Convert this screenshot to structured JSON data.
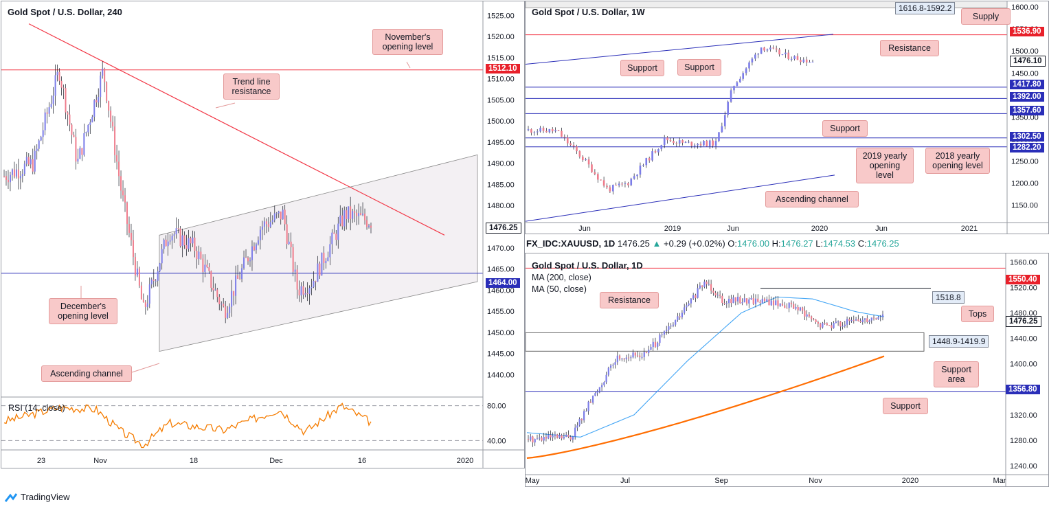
{
  "brand": {
    "name": "TradingView",
    "icon": "tradingview-cloud-icon"
  },
  "colors": {
    "bull": "#7b7ce8",
    "bear": "#ef7c8c",
    "red_line": "#f23645",
    "blue_line": "#2a2eb8",
    "ma200": "#ff6d00",
    "ma50": "#42a5f5",
    "rsi": "#f57c00",
    "red_tag": "#e8202a",
    "blue_tag": "#2a2eb8",
    "label_fill": "#f8c9c9"
  },
  "chart_data": [
    {
      "id": "h4",
      "type": "candlestick",
      "title": "Gold Spot / U.S. Dollar, 240",
      "price_axis": {
        "ylim": [
          1436,
          1527
        ],
        "ticks": [
          "1525.00",
          "1520.00",
          "1515.00",
          "1510.00",
          "1505.00",
          "1500.00",
          "1495.00",
          "1490.00",
          "1485.00",
          "1480.00",
          "1475.00",
          "1470.00",
          "1465.00",
          "1460.00",
          "1455.00",
          "1450.00",
          "1445.00",
          "1440.00"
        ]
      },
      "x_ticks": [
        "23",
        "Nov",
        "18",
        "Dec",
        "16",
        "2020"
      ],
      "price_tags": [
        {
          "text": "1512.10",
          "color": "red"
        },
        {
          "text": "1476.25",
          "color": "white"
        },
        {
          "text": "1464.00",
          "color": "blue"
        }
      ],
      "annotations": [
        {
          "text": "November's opening level"
        },
        {
          "text": "Trend line resistance"
        },
        {
          "text": "December's opening level"
        },
        {
          "text": "Ascending channel"
        }
      ],
      "levels": {
        "november_open": 1512.1,
        "december_open": 1464.0
      },
      "trendline": {
        "from": [
          1523.0,
          "Oct start"
        ],
        "to": [
          1473.0,
          "mid Dec"
        ]
      },
      "channel": {
        "upper_start": 1473.0,
        "upper_end": 1492.0,
        "lower_start": 1445.5,
        "lower_end": 1462.0
      },
      "rsi": {
        "label": "RSI (14, close)",
        "ticks": [
          "80.00",
          "40.00"
        ],
        "ylim": [
          20,
          80
        ],
        "last": 51
      }
    },
    {
      "id": "weekly",
      "type": "candlestick",
      "title": "Gold Spot / U.S. Dollar, 1W",
      "price_axis": {
        "ylim": [
          1110,
          1605
        ],
        "ticks": [
          "1600.00",
          "1550.00",
          "1500.00",
          "1450.00",
          "1400.00",
          "1350.00",
          "1300.00",
          "1250.00",
          "1200.00",
          "1150.00"
        ]
      },
      "x_ticks": [
        "Jun",
        "2019",
        "Jun",
        "2020",
        "Jun",
        "2021"
      ],
      "price_tags": [
        {
          "text": "1536.90",
          "color": "red"
        },
        {
          "text": "1476.10",
          "color": "white"
        },
        {
          "text": "1417.80",
          "color": "blue"
        },
        {
          "text": "1392.00",
          "color": "blue"
        },
        {
          "text": "1357.60",
          "color": "blue"
        },
        {
          "text": "1302.50",
          "color": "blue"
        },
        {
          "text": "1282.20",
          "color": "blue"
        }
      ],
      "supply_zone": {
        "label": "1616.8-1592.2",
        "top": 1616.8,
        "bottom": 1592.2
      },
      "annotations": [
        {
          "text": "Supply"
        },
        {
          "text": "Resistance"
        },
        {
          "text": "Support"
        },
        {
          "text": "Support"
        },
        {
          "text": "Support"
        },
        {
          "text": "2019 yearly opening level"
        },
        {
          "text": "2018 yearly opening level"
        },
        {
          "text": "Ascending channel"
        }
      ]
    },
    {
      "id": "daily",
      "type": "candlestick",
      "title": "Gold Spot / U.S. Dollar, 1D",
      "header": {
        "symbol": "FX_IDC:XAUUSD, 1D",
        "last": "1476.25",
        "change": "+0.29 (+0.02%)",
        "o_label": "O:",
        "o": "1476.00",
        "h_label": "H:",
        "h": "1476.27",
        "l_label": "L:",
        "l": "1474.53",
        "c_label": "C:",
        "c": "1476.25"
      },
      "indicators": [
        "MA (200, close)",
        "MA (50, close)"
      ],
      "price_axis": {
        "ylim": [
          1226,
          1568
        ],
        "ticks": [
          "1560.00",
          "1520.00",
          "1480.00",
          "1440.00",
          "1400.00",
          "1360.00",
          "1320.00",
          "1280.00",
          "1240.00"
        ]
      },
      "x_ticks": [
        "May",
        "Jul",
        "Sep",
        "Nov",
        "2020",
        "Mar"
      ],
      "price_tags": [
        {
          "text": "1550.40",
          "color": "red"
        },
        {
          "text": "1476.25",
          "color": "white"
        },
        {
          "text": "1356.80",
          "color": "blue"
        }
      ],
      "tops": {
        "label": "1518.8",
        "value": 1518.8
      },
      "support_area": {
        "label": "1448.9-1419.9",
        "top": 1448.9,
        "bottom": 1419.9
      },
      "annotations": [
        {
          "text": "Resistance"
        },
        {
          "text": "Tops"
        },
        {
          "text": "Support area"
        },
        {
          "text": "Support"
        }
      ]
    }
  ]
}
